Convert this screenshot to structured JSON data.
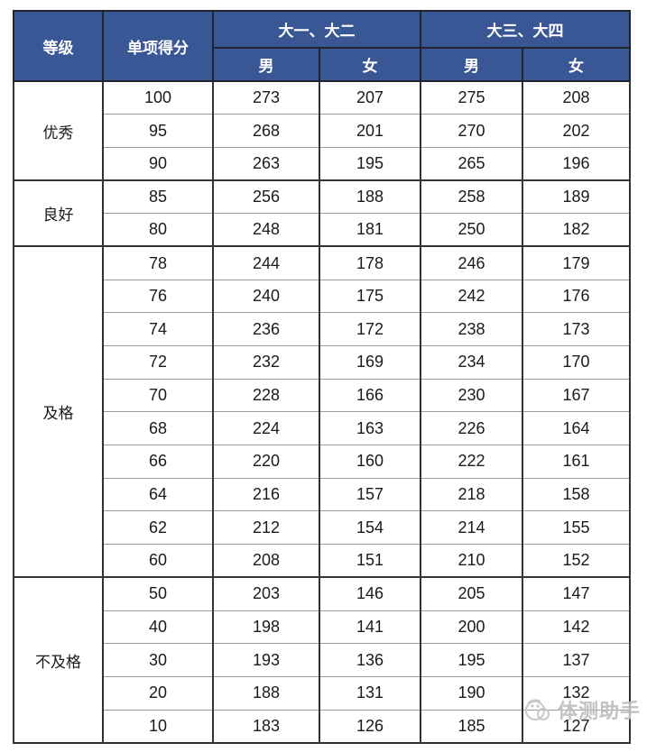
{
  "colors": {
    "header_bg": "#3A5795",
    "header_text": "#FFFFFF",
    "body_text": "#1A1A1A",
    "border_dark": "#333333",
    "border_light": "#9A9A9A",
    "watermark_gray": "#BFBFBF"
  },
  "watermark": {
    "text": "体测助手"
  },
  "chart_data": {
    "type": "table",
    "title": "",
    "header": {
      "grade": "等级",
      "score": "单项得分",
      "group1": "大一、大二",
      "group2": "大三、大四",
      "male": "男",
      "female": "女"
    },
    "columns": [
      "等级",
      "单项得分",
      "大一、大二-男",
      "大一、大二-女",
      "大三、大四-男",
      "大三、大四-女"
    ],
    "sections": [
      {
        "grade": "优秀",
        "rows": [
          [
            100,
            273,
            207,
            275,
            208
          ],
          [
            95,
            268,
            201,
            270,
            202
          ],
          [
            90,
            263,
            195,
            265,
            196
          ]
        ]
      },
      {
        "grade": "良好",
        "rows": [
          [
            85,
            256,
            188,
            258,
            189
          ],
          [
            80,
            248,
            181,
            250,
            182
          ]
        ]
      },
      {
        "grade": "及格",
        "rows": [
          [
            78,
            244,
            178,
            246,
            179
          ],
          [
            76,
            240,
            175,
            242,
            176
          ],
          [
            74,
            236,
            172,
            238,
            173
          ],
          [
            72,
            232,
            169,
            234,
            170
          ],
          [
            70,
            228,
            166,
            230,
            167
          ],
          [
            68,
            224,
            163,
            226,
            164
          ],
          [
            66,
            220,
            160,
            222,
            161
          ],
          [
            64,
            216,
            157,
            218,
            158
          ],
          [
            62,
            212,
            154,
            214,
            155
          ],
          [
            60,
            208,
            151,
            210,
            152
          ]
        ]
      },
      {
        "grade": "不及格",
        "rows": [
          [
            50,
            203,
            146,
            205,
            147
          ],
          [
            40,
            198,
            141,
            200,
            142
          ],
          [
            30,
            193,
            136,
            195,
            137
          ],
          [
            20,
            188,
            131,
            190,
            132
          ],
          [
            10,
            183,
            126,
            185,
            127
          ]
        ]
      }
    ]
  }
}
